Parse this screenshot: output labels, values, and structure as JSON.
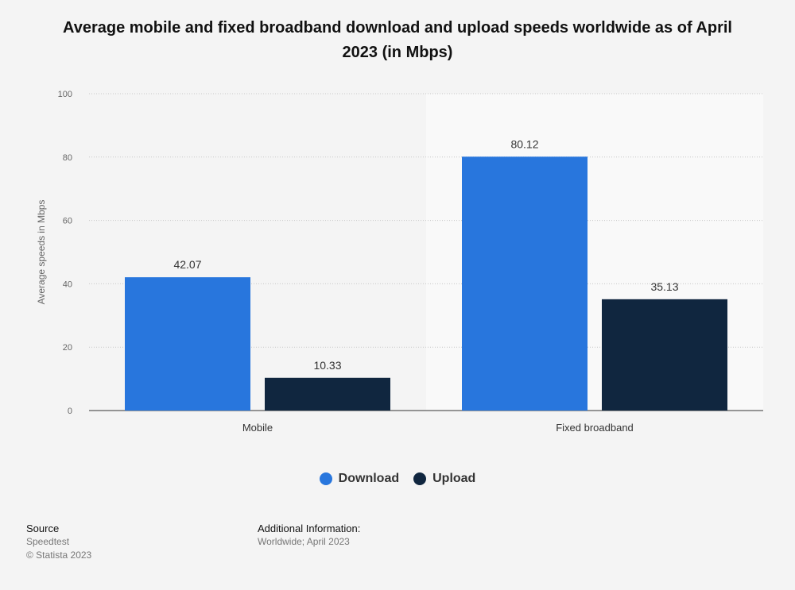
{
  "title": "Average mobile and fixed broadband download and upload speeds worldwide as of April 2023 (in Mbps)",
  "colors": {
    "download": "#2876dd",
    "upload": "#10263f",
    "background": "#f4f4f4"
  },
  "chart_data": {
    "type": "bar",
    "title": "Average mobile and fixed broadband download and upload speeds worldwide as of April 2023 (in Mbps)",
    "categories": [
      "Mobile",
      "Fixed broadband"
    ],
    "series": [
      {
        "name": "Download",
        "values": [
          42.07,
          80.12
        ]
      },
      {
        "name": "Upload",
        "values": [
          10.33,
          35.13
        ]
      }
    ],
    "value_labels": [
      [
        "42.07",
        "80.12"
      ],
      [
        "10.33",
        "35.13"
      ]
    ],
    "xlabel": "",
    "ylabel": "Average speeds in Mbps",
    "ylim": [
      0,
      100
    ],
    "yticks": [
      "0",
      "20",
      "40",
      "60",
      "80",
      "100"
    ],
    "grid": true,
    "legend": "bottom-center"
  },
  "footer": {
    "source_heading": "Source",
    "source": "Speedtest",
    "copyright": "© Statista 2023",
    "info_heading": "Additional Information:",
    "info": "Worldwide; April 2023"
  }
}
